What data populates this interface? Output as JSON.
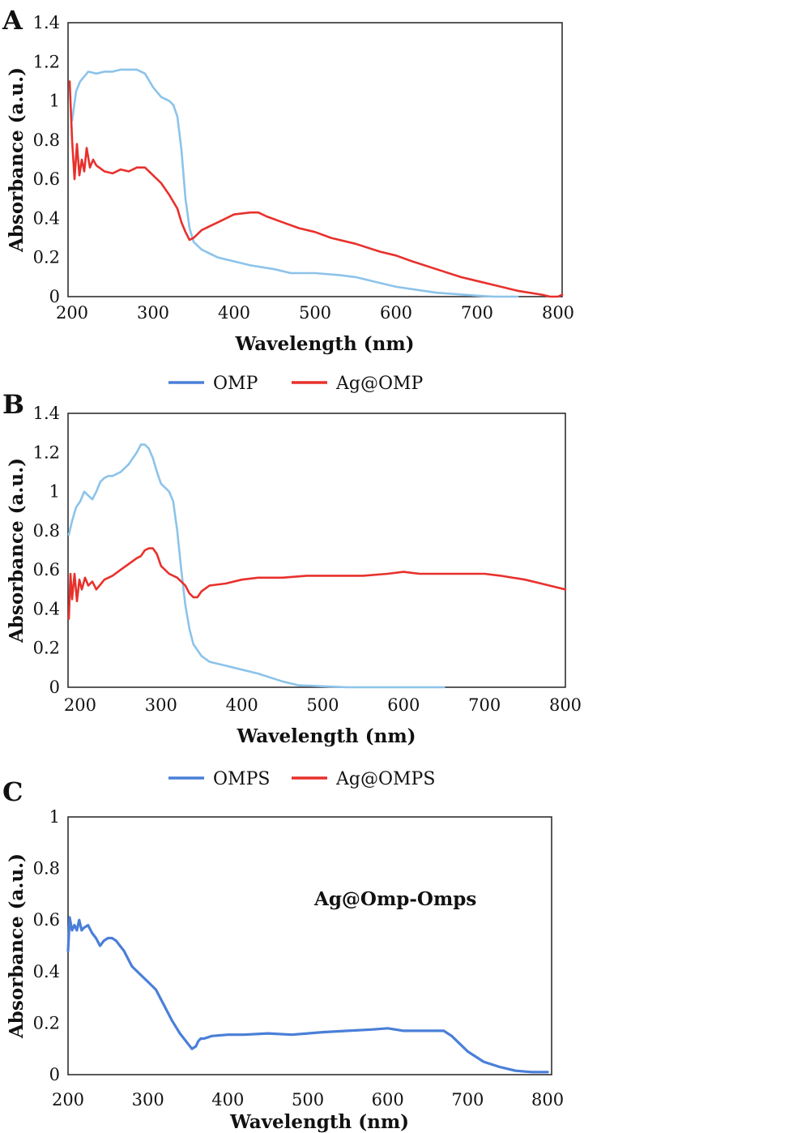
{
  "chart_data": [
    {
      "panel": "A",
      "type": "line",
      "xlabel": "Wavelength (nm)",
      "ylabel": "Absorbance (a.u.)",
      "xlim": [
        195,
        805
      ],
      "ylim": [
        0,
        1.4
      ],
      "xticks": [
        "200",
        "300",
        "400",
        "500",
        "600",
        "700",
        "800"
      ],
      "yticks": [
        "0",
        "0.2",
        "0.4",
        "0.6",
        "0.8",
        "1",
        "1.2",
        "1.4"
      ],
      "grid": false,
      "legend": "below",
      "series": [
        {
          "name": "OMP",
          "color": "#8cc3ea",
          "x": [
            200,
            205,
            210,
            220,
            230,
            240,
            250,
            260,
            270,
            280,
            290,
            300,
            310,
            320,
            325,
            330,
            335,
            340,
            345,
            350,
            360,
            380,
            400,
            420,
            450,
            470,
            500,
            530,
            550,
            580,
            600,
            650,
            700,
            720,
            750
          ],
          "y": [
            0.9,
            1.05,
            1.1,
            1.15,
            1.14,
            1.15,
            1.15,
            1.16,
            1.16,
            1.16,
            1.14,
            1.07,
            1.02,
            1.0,
            0.98,
            0.92,
            0.75,
            0.5,
            0.35,
            0.28,
            0.24,
            0.2,
            0.18,
            0.16,
            0.14,
            0.12,
            0.12,
            0.11,
            0.1,
            0.07,
            0.05,
            0.02,
            0.005,
            0.0,
            0.0
          ]
        },
        {
          "name": "Ag@OMP",
          "color": "#e8302c",
          "x": [
            197,
            200,
            203,
            206,
            209,
            212,
            215,
            218,
            222,
            226,
            230,
            240,
            250,
            260,
            270,
            280,
            290,
            300,
            310,
            320,
            330,
            335,
            340,
            345,
            350,
            360,
            370,
            380,
            400,
            420,
            430,
            440,
            460,
            480,
            500,
            520,
            550,
            580,
            600,
            620,
            650,
            680,
            700,
            720,
            750,
            780,
            790,
            800,
            805
          ],
          "y": [
            1.1,
            0.8,
            0.6,
            0.78,
            0.62,
            0.7,
            0.64,
            0.76,
            0.66,
            0.7,
            0.67,
            0.64,
            0.63,
            0.65,
            0.64,
            0.66,
            0.66,
            0.62,
            0.58,
            0.52,
            0.45,
            0.38,
            0.33,
            0.29,
            0.3,
            0.34,
            0.36,
            0.38,
            0.42,
            0.43,
            0.43,
            0.41,
            0.38,
            0.35,
            0.33,
            0.3,
            0.27,
            0.23,
            0.21,
            0.18,
            0.14,
            0.1,
            0.08,
            0.06,
            0.03,
            0.01,
            0.0,
            0.0,
            0.01
          ]
        }
      ]
    },
    {
      "panel": "B",
      "type": "line",
      "xlabel": "Wavelength (nm)",
      "ylabel": "Absorbance (a.u.)",
      "xlim": [
        185,
        800
      ],
      "ylim": [
        0,
        1.4
      ],
      "xticks": [
        "200",
        "300",
        "400",
        "500",
        "600",
        "700",
        "800"
      ],
      "yticks": [
        "0",
        "0.2",
        "0.4",
        "0.6",
        "0.8",
        "1",
        "1.2",
        "1.4"
      ],
      "grid": false,
      "legend": "below",
      "series": [
        {
          "name": "OMPS",
          "color": "#8cc3ea",
          "x": [
            186,
            190,
            195,
            200,
            205,
            210,
            215,
            220,
            225,
            230,
            235,
            240,
            250,
            260,
            265,
            270,
            275,
            280,
            285,
            290,
            295,
            300,
            305,
            310,
            315,
            320,
            325,
            330,
            335,
            340,
            350,
            360,
            380,
            400,
            420,
            450,
            470,
            500,
            530,
            550,
            600,
            650
          ],
          "y": [
            0.78,
            0.85,
            0.92,
            0.95,
            1.0,
            0.98,
            0.96,
            1.0,
            1.05,
            1.07,
            1.08,
            1.08,
            1.1,
            1.14,
            1.17,
            1.2,
            1.24,
            1.24,
            1.22,
            1.17,
            1.1,
            1.04,
            1.02,
            1.0,
            0.95,
            0.8,
            0.6,
            0.42,
            0.3,
            0.22,
            0.16,
            0.13,
            0.11,
            0.09,
            0.07,
            0.03,
            0.01,
            0.005,
            0.0,
            0.0,
            0.0,
            0.0
          ]
        },
        {
          "name": "Ag@OMPS",
          "color": "#e8302c",
          "x": [
            186,
            188,
            190,
            193,
            196,
            199,
            202,
            206,
            210,
            215,
            220,
            230,
            240,
            250,
            260,
            270,
            275,
            280,
            285,
            290,
            295,
            300,
            310,
            320,
            330,
            335,
            340,
            345,
            350,
            360,
            380,
            400,
            420,
            450,
            480,
            500,
            520,
            550,
            580,
            600,
            620,
            650,
            680,
            700,
            720,
            750,
            770,
            790,
            800
          ],
          "y": [
            0.35,
            0.58,
            0.45,
            0.58,
            0.44,
            0.55,
            0.5,
            0.56,
            0.52,
            0.54,
            0.5,
            0.55,
            0.57,
            0.6,
            0.63,
            0.66,
            0.67,
            0.7,
            0.71,
            0.71,
            0.68,
            0.62,
            0.58,
            0.56,
            0.52,
            0.48,
            0.46,
            0.46,
            0.49,
            0.52,
            0.53,
            0.55,
            0.56,
            0.56,
            0.57,
            0.57,
            0.57,
            0.57,
            0.58,
            0.59,
            0.58,
            0.58,
            0.58,
            0.58,
            0.57,
            0.55,
            0.53,
            0.51,
            0.5
          ]
        }
      ]
    },
    {
      "panel": "C",
      "type": "line",
      "xlabel": "Wavelength (nm)",
      "ylabel": "Absorbance (a.u.)",
      "xlim": [
        200,
        805
      ],
      "ylim": [
        0,
        1
      ],
      "xticks": [
        "200",
        "300",
        "400",
        "500",
        "600",
        "700",
        "800"
      ],
      "yticks": [
        "0",
        "0.2",
        "0.4",
        "0.6",
        "0.8",
        "1"
      ],
      "grid": false,
      "legend": "none",
      "annotation": "Ag@Omp-Omps",
      "series": [
        {
          "name": "",
          "color": "#4a7fd8",
          "x": [
            200,
            202,
            205,
            208,
            211,
            214,
            217,
            220,
            225,
            230,
            235,
            240,
            245,
            250,
            255,
            260,
            270,
            280,
            290,
            300,
            310,
            320,
            330,
            340,
            350,
            355,
            360,
            363,
            366,
            370,
            380,
            400,
            420,
            450,
            480,
            500,
            520,
            550,
            580,
            600,
            620,
            650,
            670,
            680,
            690,
            700,
            720,
            740,
            760,
            780,
            800
          ],
          "y": [
            0.48,
            0.61,
            0.56,
            0.58,
            0.56,
            0.6,
            0.56,
            0.57,
            0.58,
            0.55,
            0.53,
            0.5,
            0.52,
            0.53,
            0.53,
            0.52,
            0.48,
            0.42,
            0.39,
            0.36,
            0.33,
            0.27,
            0.21,
            0.16,
            0.12,
            0.1,
            0.11,
            0.13,
            0.14,
            0.14,
            0.15,
            0.155,
            0.155,
            0.16,
            0.155,
            0.16,
            0.165,
            0.17,
            0.175,
            0.18,
            0.17,
            0.17,
            0.17,
            0.15,
            0.12,
            0.09,
            0.05,
            0.03,
            0.015,
            0.01,
            0.01
          ]
        }
      ]
    }
  ]
}
